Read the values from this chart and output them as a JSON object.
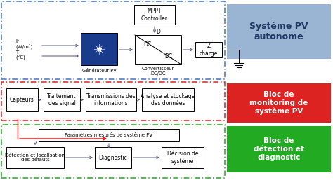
{
  "bg_color": "#ffffff",
  "section1_label": "Système PV\nautonome",
  "section1_label_bg": "#9ab5d4",
  "section1_border": "#4472c4",
  "section2_label": "Bloc de\nmonitoring de\nsystème PV",
  "section2_label_bg": "#dd2222",
  "section2_border": "#dd2222",
  "section3_label": "Bloc de\ndétection et\ndiagnostic",
  "section3_label_bg": "#22aa22",
  "section3_border": "#22aa22",
  "mppt_text": "MPPT\nController",
  "dc_dc_label": "Convertisseur\nDC/DC",
  "z_charge_text": "Z\ncharge",
  "gen_pv_text": "Générateur PV",
  "ir_text": "Ir\n(W/m²)",
  "t_text": "T\n(°C)",
  "block1_text": "Capteurs",
  "block2_text": "Traitement\ndes signal",
  "block3_text": "Transmissions des\ninformations",
  "block4_text": "Analyse et stockage\ndes données",
  "block5_text": "Paramètres mesurés de système PV",
  "block6_text": "Détection et localisation\ndes défauts",
  "block7_text": "Diagnostic",
  "block8_text": "Décision de\nsystème"
}
